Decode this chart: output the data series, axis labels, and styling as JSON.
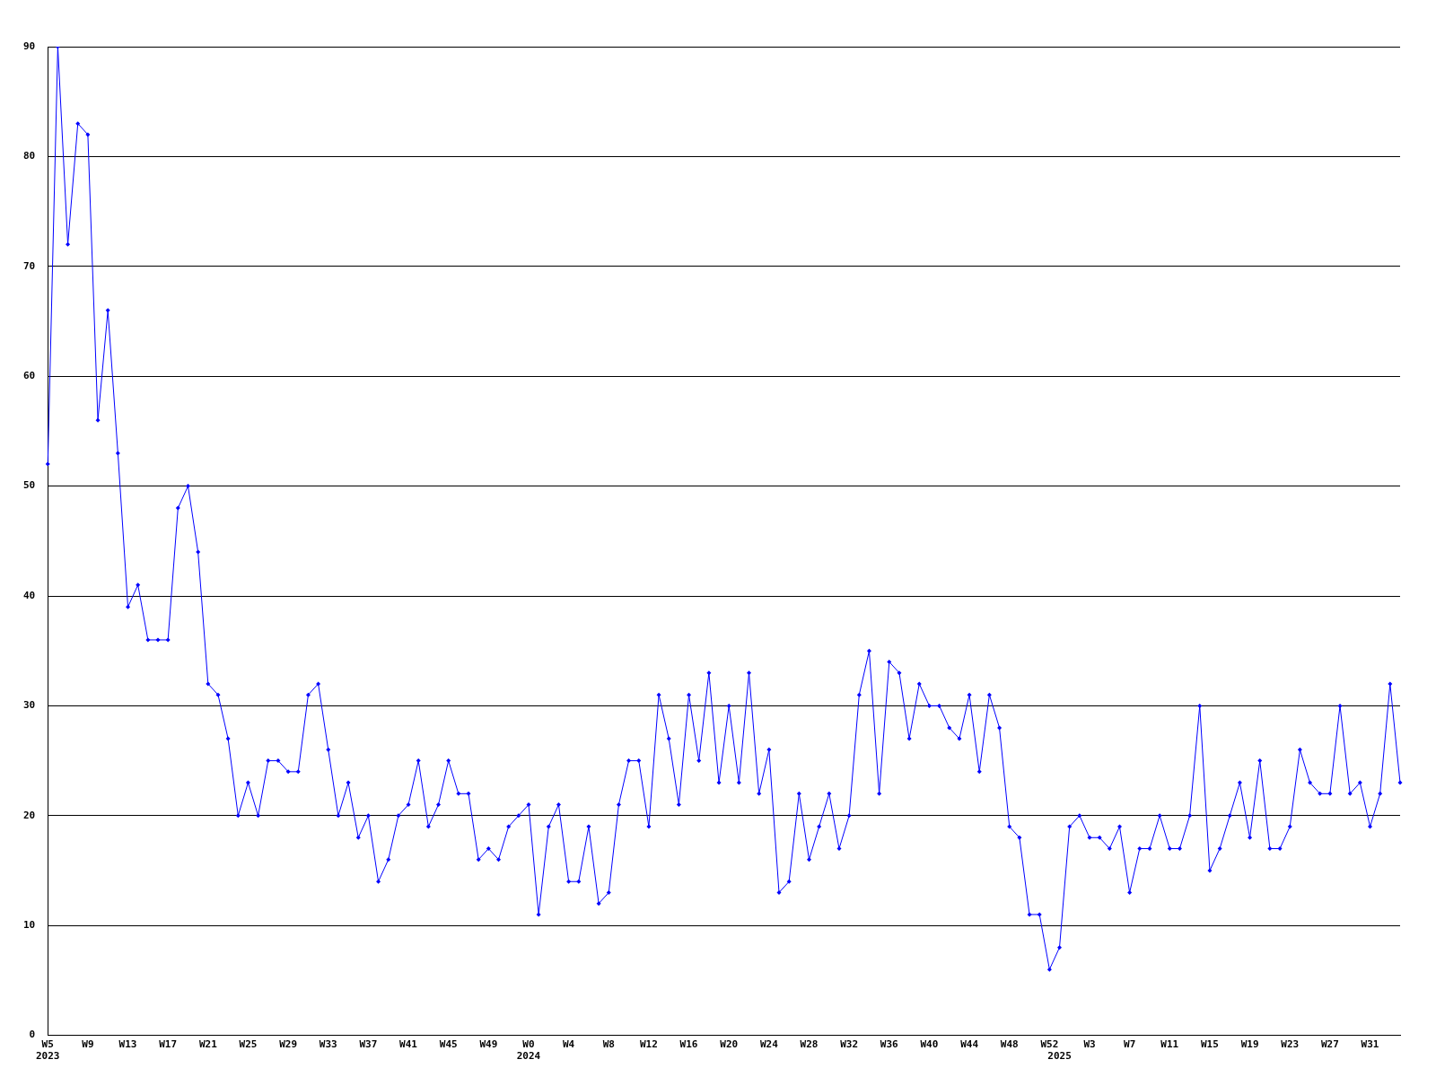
{
  "chart_data": {
    "type": "line",
    "categories": [
      "W5\n2023",
      null,
      null,
      null,
      "W9",
      null,
      null,
      null,
      "W13",
      null,
      null,
      null,
      "W17",
      null,
      null,
      null,
      "W21",
      null,
      null,
      null,
      "W25",
      null,
      null,
      null,
      "W29",
      null,
      null,
      null,
      "W33",
      null,
      null,
      null,
      "W37",
      null,
      null,
      null,
      "W41",
      null,
      null,
      null,
      "W45",
      null,
      null,
      null,
      "W49",
      null,
      null,
      null,
      "W0\n2024",
      null,
      null,
      null,
      "W4",
      null,
      null,
      null,
      "W8",
      null,
      null,
      null,
      "W12",
      null,
      null,
      null,
      "W16",
      null,
      null,
      null,
      "W20",
      null,
      null,
      null,
      "W24",
      null,
      null,
      null,
      "W28",
      null,
      null,
      null,
      "W32",
      null,
      null,
      null,
      "W36",
      null,
      null,
      null,
      "W40",
      null,
      null,
      null,
      "W44",
      null,
      null,
      null,
      "W48",
      null,
      null,
      null,
      "W52",
      "\n2025",
      null,
      null,
      "W3",
      null,
      null,
      null,
      "W7",
      null,
      null,
      null,
      "W11",
      null,
      null,
      null,
      "W15",
      null,
      null,
      null,
      "W19",
      null,
      null,
      null,
      "W23",
      null,
      null,
      null,
      "W27",
      null,
      null,
      null,
      "W31",
      null,
      null,
      null
    ],
    "values": [
      52,
      90,
      72,
      83,
      82,
      56,
      66,
      53,
      39,
      41,
      36,
      36,
      36,
      48,
      50,
      44,
      32,
      31,
      27,
      20,
      23,
      20,
      25,
      25,
      24,
      24,
      31,
      32,
      26,
      20,
      23,
      18,
      20,
      14,
      16,
      20,
      21,
      25,
      19,
      21,
      25,
      22,
      22,
      16,
      17,
      16,
      19,
      20,
      21,
      11,
      19,
      21,
      14,
      14,
      19,
      12,
      13,
      21,
      25,
      25,
      19,
      31,
      27,
      21,
      31,
      25,
      33,
      23,
      30,
      23,
      33,
      22,
      26,
      13,
      14,
      22,
      16,
      19,
      22,
      17,
      20,
      31,
      35,
      22,
      34,
      33,
      27,
      32,
      30,
      30,
      28,
      27,
      31,
      24,
      31,
      28,
      19,
      18,
      11,
      11,
      6,
      8,
      19,
      20,
      18,
      18,
      17,
      19,
      13,
      17,
      17,
      20,
      17,
      17,
      20,
      30,
      15,
      17,
      20,
      23,
      18,
      25,
      17,
      17,
      19,
      26,
      23,
      22,
      22,
      30,
      22,
      23,
      19,
      22,
      32,
      23
    ],
    "color": "#0000ff",
    "ylim": [
      0,
      90
    ],
    "yticks": [
      0,
      10,
      20,
      30,
      40,
      50,
      60,
      70,
      80,
      90
    ],
    "grid": "y",
    "marker": "diamond"
  }
}
